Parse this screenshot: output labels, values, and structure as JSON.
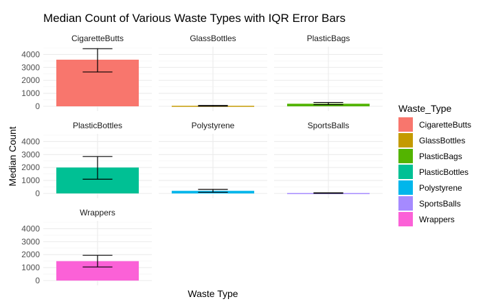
{
  "chart_data": {
    "type": "bar",
    "title": "Median Count of Various Waste Types with IQR Error Bars",
    "xlabel": "Waste Type",
    "ylabel": "Median Count",
    "ylim": [
      0,
      4500
    ],
    "yticks": [
      0,
      1000,
      2000,
      3000,
      4000
    ],
    "facet_columns": 3,
    "grid": true,
    "legend": {
      "title": "Waste_Type",
      "position": "right"
    },
    "series": [
      {
        "name": "CigaretteButts",
        "median": 3600,
        "q1": 2650,
        "q3": 4450,
        "color": "#F8766D"
      },
      {
        "name": "GlassBottles",
        "median": 40,
        "q1": 10,
        "q3": 70,
        "color": "#C49A00"
      },
      {
        "name": "PlasticBags",
        "median": 200,
        "q1": 130,
        "q3": 290,
        "color": "#53B400"
      },
      {
        "name": "PlasticBottles",
        "median": 2000,
        "q1": 1100,
        "q3": 2850,
        "color": "#00C094"
      },
      {
        "name": "Polystyrene",
        "median": 200,
        "q1": 90,
        "q3": 310,
        "color": "#00B6EB"
      },
      {
        "name": "SportsBalls",
        "median": 30,
        "q1": 10,
        "q3": 50,
        "color": "#A58AFF"
      },
      {
        "name": "Wrappers",
        "median": 1500,
        "q1": 1050,
        "q3": 1950,
        "color": "#FB61D7"
      }
    ]
  }
}
